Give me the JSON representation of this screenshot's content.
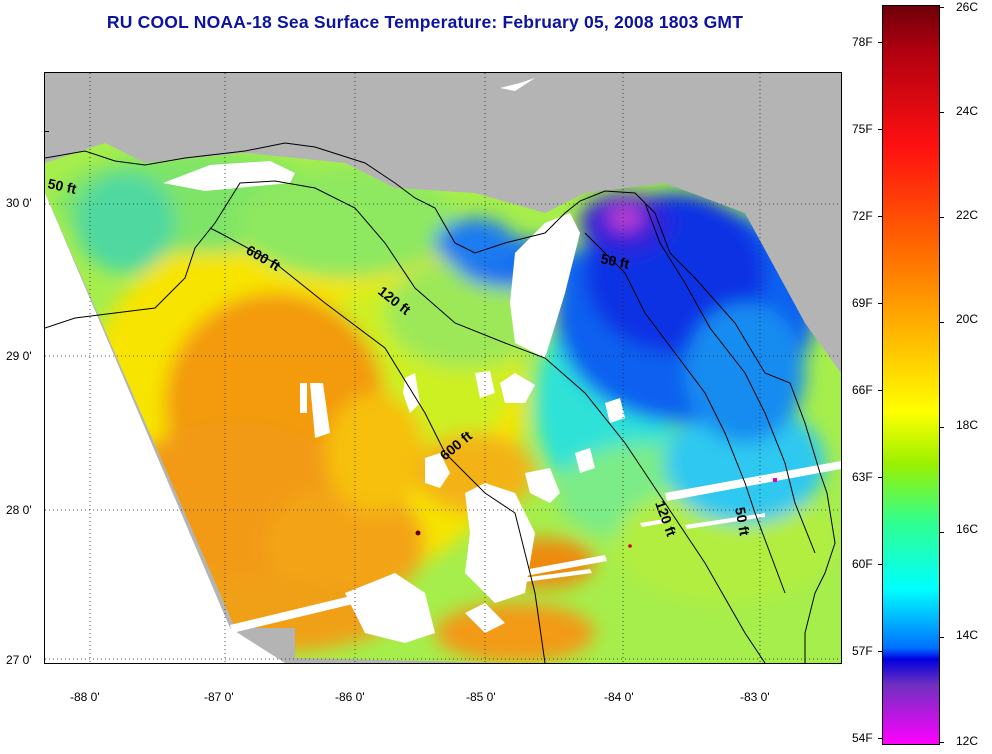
{
  "title": "RU COOL  NOAA-18  Sea Surface Temperature:  February 05, 2008 1803 GMT",
  "map": {
    "lat_labels": [
      "30 0'",
      "29 0'",
      "28 0'",
      "27 0'"
    ],
    "lon_labels": [
      "-88 0'",
      "-87 0'",
      "-86 0'",
      "-85 0'",
      "-84 0'",
      "-83 0'"
    ],
    "contour_labels": [
      "50 ft",
      "600 ft",
      "120 ft",
      "50 ft",
      "600 ft",
      "120 ft",
      "50 ft"
    ],
    "colors": {
      "land": "#b4b4b4",
      "no_data": "#ffffff",
      "coastline": "#000000"
    }
  },
  "colorbar": {
    "fahrenheit_labels": [
      "78F",
      "75F",
      "72F",
      "69F",
      "66F",
      "63F",
      "60F",
      "57F",
      "54F"
    ],
    "celsius_labels": [
      "26C",
      "24C",
      "22C",
      "20C",
      "18C",
      "16C",
      "14C",
      "12C"
    ]
  }
}
